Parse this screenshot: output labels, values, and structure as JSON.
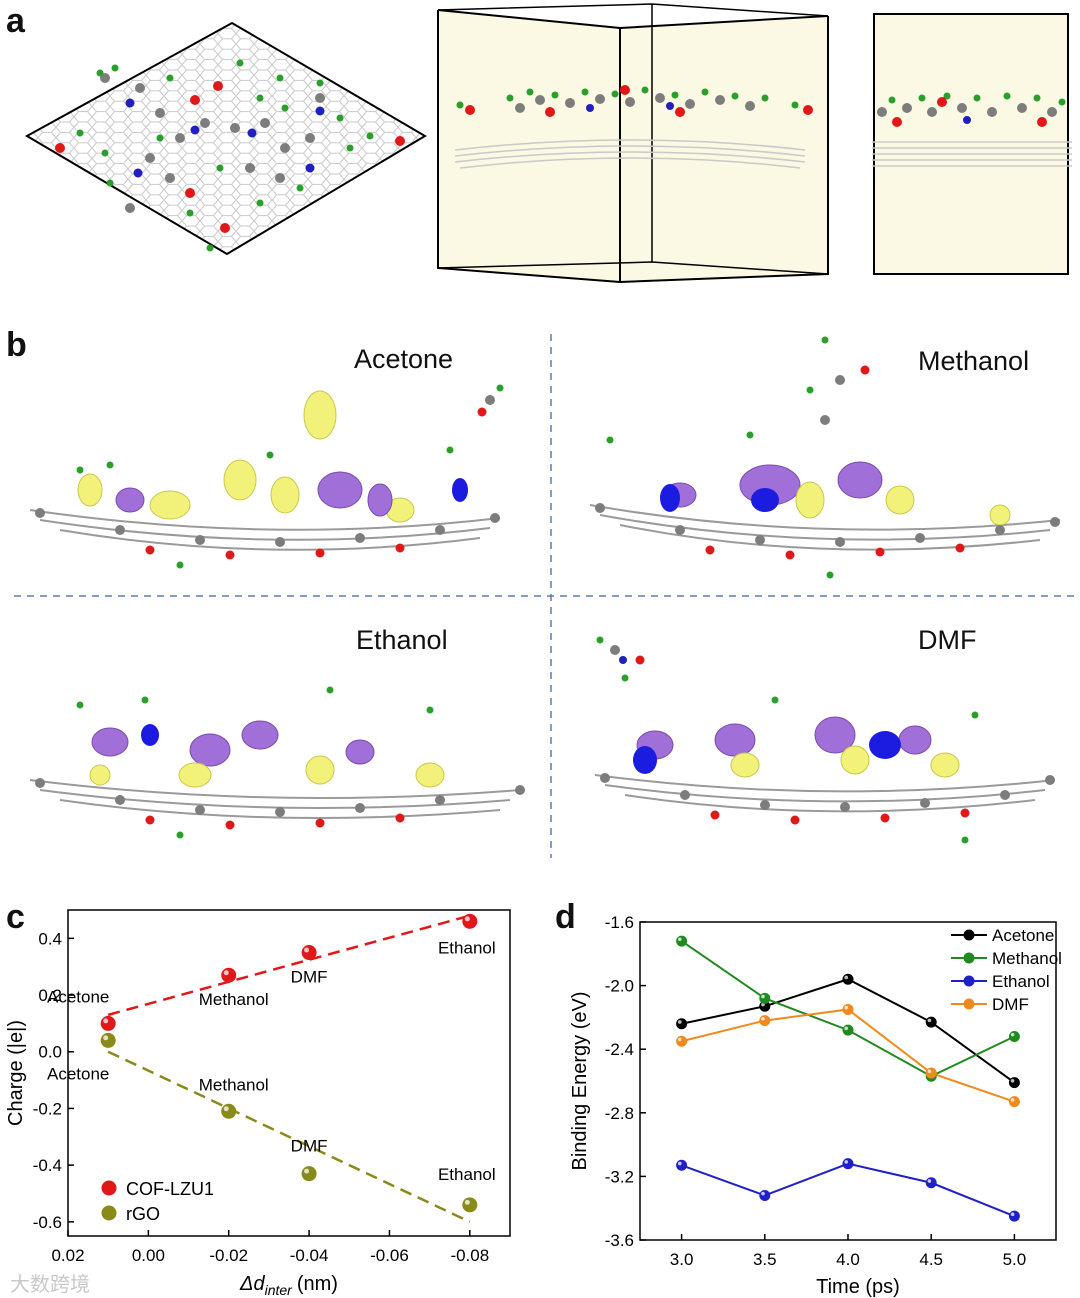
{
  "panels": {
    "a": "a",
    "b": "b",
    "c": "c",
    "d": "d"
  },
  "panel_b": {
    "labels": [
      "Acetone",
      "Methanol",
      "Ethanol",
      "DMF"
    ]
  },
  "colors": {
    "red_atom": "#e01818",
    "olive_atom": "#8a8a1a",
    "cof_line": "#d62a2a",
    "rgo_line": "#8b8b2a",
    "acetone": "#000000",
    "methanol": "#1f8a1f",
    "ethanol": "#2020c8",
    "dmf": "#f08a1e",
    "cell_fill": "#fbf8e4",
    "iso_yellow": "#f2f27a",
    "iso_purple": "#a070d8",
    "iso_blue": "#1c1ce0"
  },
  "watermark": "大数跨境",
  "chart_data": [
    {
      "type": "scatter",
      "panel": "c",
      "xlabel": "Δd inter (nm)",
      "xlabel_main": "Δd",
      "xlabel_sub": "inter",
      "xlabel_unit": "(nm)",
      "ylabel": "Charge (|e|)",
      "xlim": [
        0.02,
        -0.09
      ],
      "ylim": [
        -0.65,
        0.5
      ],
      "xticks": [
        "0.02",
        "0.00",
        "-0.02",
        "-0.04",
        "-0.06",
        "-0.08"
      ],
      "xtick_values": [
        0.02,
        0.0,
        -0.02,
        -0.04,
        -0.06,
        -0.08
      ],
      "yticks": [
        "0.4",
        "0.2",
        "0.0",
        "-0.2",
        "-0.4",
        "-0.6"
      ],
      "ytick_values": [
        0.4,
        0.2,
        0.0,
        -0.2,
        -0.4,
        -0.6
      ],
      "series": [
        {
          "name": "COF-LZU1",
          "color": "#e01818",
          "points": [
            {
              "x": 0.01,
              "y": 0.1,
              "label": "Acetone"
            },
            {
              "x": -0.02,
              "y": 0.27,
              "label": "Methanol"
            },
            {
              "x": -0.04,
              "y": 0.35,
              "label": "DMF"
            },
            {
              "x": -0.08,
              "y": 0.46,
              "label": "Ethanol"
            }
          ],
          "fit": [
            [
              0.01,
              0.13
            ],
            [
              -0.08,
              0.48
            ]
          ]
        },
        {
          "name": "rGO",
          "color": "#8a8a1a",
          "points": [
            {
              "x": 0.01,
              "y": 0.04,
              "label": "Acetone"
            },
            {
              "x": -0.02,
              "y": -0.21,
              "label": "Methanol"
            },
            {
              "x": -0.04,
              "y": -0.43,
              "label": "DMF"
            },
            {
              "x": -0.08,
              "y": -0.54,
              "label": "Ethanol"
            }
          ],
          "fit": [
            [
              0.01,
              0.0
            ],
            [
              -0.08,
              -0.6
            ]
          ]
        }
      ],
      "legend": "bottom-left"
    },
    {
      "type": "line",
      "panel": "d",
      "xlabel": "Time (ps)",
      "ylabel": "Binding Energy (eV)",
      "x": [
        3.0,
        3.5,
        4.0,
        4.5,
        5.0
      ],
      "xlim": [
        2.75,
        5.25
      ],
      "ylim": [
        -3.6,
        -1.6
      ],
      "xticks": [
        "3.0",
        "3.5",
        "4.0",
        "4.5",
        "5.0"
      ],
      "xtick_values": [
        3.0,
        3.5,
        4.0,
        4.5,
        5.0
      ],
      "yticks": [
        "-1.6",
        "-2.0",
        "-2.4",
        "-2.8",
        "-3.2",
        "-3.6"
      ],
      "ytick_values": [
        -1.6,
        -2.0,
        -2.4,
        -2.8,
        -3.2,
        -3.6
      ],
      "series": [
        {
          "name": "Acetone",
          "color": "#000000",
          "values": [
            -2.24,
            -2.13,
            -1.96,
            -2.23,
            -2.61
          ]
        },
        {
          "name": "Methanol",
          "color": "#1f8a1f",
          "values": [
            -1.72,
            -2.08,
            -2.28,
            -2.57,
            -2.32
          ]
        },
        {
          "name": "Ethanol",
          "color": "#2020c8",
          "values": [
            -3.13,
            -3.32,
            -3.12,
            -3.24,
            -3.45
          ]
        },
        {
          "name": "DMF",
          "color": "#f08a1e",
          "values": [
            -2.35,
            -2.22,
            -2.15,
            -2.55,
            -2.73
          ]
        }
      ],
      "legend": "top-right"
    }
  ]
}
